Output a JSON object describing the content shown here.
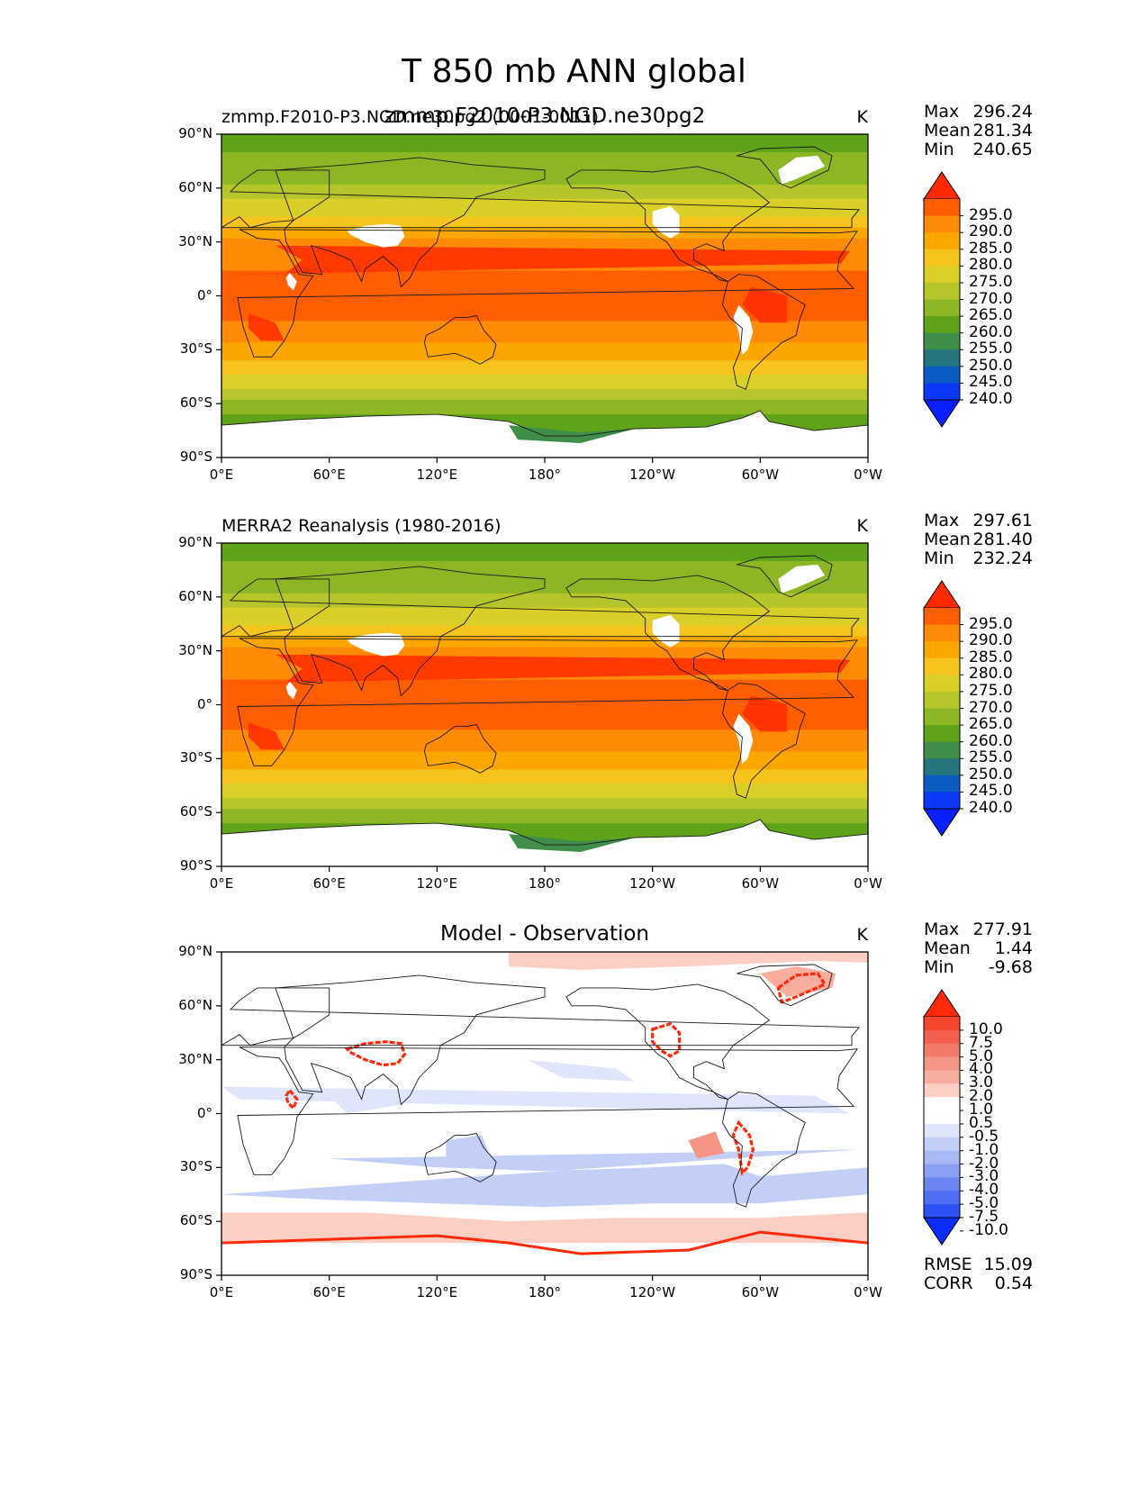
{
  "figure": {
    "title": "T 850 mb ANN global",
    "panels": [
      {
        "id": "test",
        "title_left": "zmmp.F2010-P3.NGD.ne30pg2 (0001-0011)",
        "title_center": "zmmp.F2010-P3.NGD.ne30pg2",
        "units": "K",
        "stats": {
          "labels": [
            "Max",
            "Mean",
            "Min"
          ],
          "values": [
            "296.24",
            "281.34",
            "240.65"
          ]
        },
        "extra_stats": null,
        "colorbar": {
          "labels": [
            "295.0",
            "290.0",
            "285.0",
            "280.0",
            "275.0",
            "270.0",
            "265.0",
            "260.0",
            "255.0",
            "250.0",
            "245.0",
            "240.0"
          ],
          "colors": [
            "#ff2a00",
            "#ff5e00",
            "#ff8a05",
            "#fba700",
            "#f7c41e",
            "#d9cf28",
            "#b6c52a",
            "#8cb624",
            "#5ea319",
            "#3f8f4a",
            "#24757d",
            "#0a5bc2",
            "#0a39f5",
            "#0a1fff"
          ]
        }
      },
      {
        "id": "ref",
        "title_left": "MERRA2 Reanalysis (1980-2016)",
        "title_center": "",
        "units": "K",
        "stats": {
          "labels": [
            "Max",
            "Mean",
            "Min"
          ],
          "values": [
            "297.61",
            "281.40",
            "232.24"
          ]
        },
        "extra_stats": null,
        "colorbar": {
          "labels": [
            "295.0",
            "290.0",
            "285.0",
            "280.0",
            "275.0",
            "270.0",
            "265.0",
            "260.0",
            "255.0",
            "250.0",
            "245.0",
            "240.0"
          ],
          "colors": [
            "#ff2a00",
            "#ff5e00",
            "#ff8a05",
            "#fba700",
            "#f7c41e",
            "#d9cf28",
            "#b6c52a",
            "#8cb624",
            "#5ea319",
            "#3f8f4a",
            "#24757d",
            "#0a5bc2",
            "#0a39f5",
            "#0a1fff"
          ]
        }
      },
      {
        "id": "diff",
        "title_left": "",
        "title_center": "Model - Observation",
        "units": "K",
        "stats": {
          "labels": [
            "Max",
            "Mean",
            "Min"
          ],
          "values": [
            "277.91",
            "1.44",
            "-9.68"
          ]
        },
        "extra_stats": {
          "labels": [
            "RMSE",
            "CORR"
          ],
          "values": [
            "15.09",
            "0.54"
          ]
        },
        "colorbar": {
          "labels": [
            "10.0",
            "7.5",
            "5.0",
            "4.0",
            "3.0",
            "2.0",
            "1.0",
            "0.5",
            "-0.5",
            "-1.0",
            "-2.0",
            "-3.0",
            "-4.0",
            "-5.0",
            "-7.5",
            "-10.0"
          ],
          "colors": [
            "#ff2a0a",
            "#f5452a",
            "#f45f4e",
            "#f27a6b",
            "#f59585",
            "#f8ad9f",
            "#fbcfc4",
            "#ffffff",
            "#ffffff",
            "#dfe6fb",
            "#c4cff8",
            "#a8b9f5",
            "#8aa1f3",
            "#6b86f2",
            "#4f6ef4",
            "#2c52f7",
            "#0a2cff"
          ]
        }
      }
    ]
  },
  "chart_data": {
    "type": "heatmap",
    "title": "T 850 mb ANN global",
    "x_ticks": [
      "0°E",
      "60°E",
      "120°E",
      "180°",
      "120°W",
      "60°W",
      "0°W"
    ],
    "y_ticks": [
      "90°N",
      "60°N",
      "30°N",
      "0°",
      "30°S",
      "60°S",
      "90°S"
    ],
    "xlim": [
      0,
      360
    ],
    "ylim": [
      -90,
      90
    ],
    "series": [
      {
        "name": "zmmp.F2010-P3.NGD.ne30pg2",
        "units": "K",
        "max": 296.24,
        "mean": 281.34,
        "min": 240.65,
        "zonal_profile": {
          "lat": [
            90,
            75,
            60,
            45,
            30,
            15,
            0,
            -15,
            -30,
            -45,
            -60,
            -72
          ],
          "value": [
            258,
            261,
            266,
            275,
            286,
            290,
            292,
            290,
            283,
            275,
            264,
            257
          ]
        }
      },
      {
        "name": "MERRA2 Reanalysis (1980-2016)",
        "units": "K",
        "max": 297.61,
        "mean": 281.4,
        "min": 232.24,
        "zonal_profile": {
          "lat": [
            90,
            75,
            60,
            45,
            30,
            15,
            0,
            -15,
            -30,
            -45,
            -60,
            -72
          ],
          "value": [
            258,
            261,
            266,
            275,
            286,
            290,
            292,
            290,
            283,
            275,
            264,
            256
          ]
        }
      },
      {
        "name": "Model - Observation",
        "units": "K",
        "max": 277.91,
        "mean": 1.44,
        "min": -9.68,
        "rmse": 15.09,
        "corr": 0.54
      }
    ]
  }
}
